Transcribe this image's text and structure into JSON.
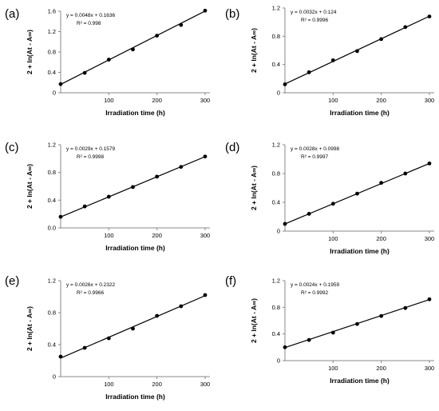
{
  "chart_data": [
    {
      "type": "scatter",
      "panel_label": "(a)",
      "xlabel": "Irradiation time (h)",
      "ylabel": "2 + ln(At - A∞)",
      "xlim": [
        0,
        310
      ],
      "ylim": [
        0,
        1.6
      ],
      "x_ticks": [
        100,
        200,
        300
      ],
      "y_ticks": [
        0,
        0.4,
        0.8,
        1.2,
        1.6
      ],
      "y_tick_labels": [
        "0",
        "0.4",
        "0.8",
        "1.2",
        "1.6"
      ],
      "x": [
        0,
        50,
        100,
        150,
        200,
        250,
        300
      ],
      "y": [
        0.17,
        0.39,
        0.65,
        0.85,
        1.12,
        1.33,
        1.61
      ],
      "trendline": {
        "slope": 0.0048,
        "intercept": 0.1636
      },
      "equation": "y = 0.0048x + 0.1636",
      "r2": "R² = 0.998",
      "grid": false
    },
    {
      "type": "scatter",
      "panel_label": "(b)",
      "xlabel": "Irradiation time (h)",
      "ylabel": "2 + ln(At - A∞)",
      "xlim": [
        0,
        310
      ],
      "ylim": [
        0,
        1.2
      ],
      "x_ticks": [
        100,
        200,
        300
      ],
      "y_ticks": [
        0,
        0.4,
        0.8,
        1.2
      ],
      "y_tick_labels": [
        "0",
        "0.4",
        "0.8",
        "1.2"
      ],
      "x": [
        0,
        50,
        100,
        150,
        200,
        250,
        300
      ],
      "y": [
        0.12,
        0.29,
        0.46,
        0.59,
        0.76,
        0.93,
        1.08
      ],
      "trendline": {
        "slope": 0.0032,
        "intercept": 0.124
      },
      "equation": "y = 0.0032x + 0.124",
      "r2": "R² = 0.9996",
      "grid": false
    },
    {
      "type": "scatter",
      "panel_label": "(c)",
      "xlabel": "Irradiation time (h)",
      "ylabel": "2 + ln(At - A∞)",
      "xlim": [
        0,
        310
      ],
      "ylim": [
        0,
        1.2
      ],
      "x_ticks": [
        100,
        200,
        300
      ],
      "y_ticks": [
        0,
        0.4,
        0.8,
        1.2
      ],
      "y_tick_labels": [
        "0.0",
        "0.4",
        "0.8",
        "1.2"
      ],
      "x": [
        0,
        50,
        100,
        150,
        200,
        250,
        300
      ],
      "y": [
        0.16,
        0.31,
        0.45,
        0.59,
        0.74,
        0.88,
        1.03
      ],
      "trendline": {
        "slope": 0.0029,
        "intercept": 0.1579
      },
      "equation": "y = 0.0029x + 0.1579",
      "r2": "R² = 0.9998",
      "grid": false
    },
    {
      "type": "scatter",
      "panel_label": "(d)",
      "xlabel": "Irradiation time (h)",
      "ylabel": "2 + ln(At - A∞)",
      "xlim": [
        0,
        310
      ],
      "ylim": [
        0,
        1.2
      ],
      "x_ticks": [
        100,
        200,
        300
      ],
      "y_ticks": [
        0,
        0.4,
        0.8,
        1.2
      ],
      "y_tick_labels": [
        "0",
        "0.4",
        "0.8",
        "1.2"
      ],
      "x": [
        0,
        50,
        100,
        150,
        200,
        250,
        300
      ],
      "y": [
        0.1,
        0.24,
        0.38,
        0.52,
        0.67,
        0.8,
        0.94
      ],
      "trendline": {
        "slope": 0.0028,
        "intercept": 0.0998
      },
      "equation": "y = 0.0028x + 0.0998",
      "r2": "R² = 0.9997",
      "grid": false
    },
    {
      "type": "scatter",
      "panel_label": "(e)",
      "xlabel": "Irradiation time (h)",
      "ylabel": "2 + ln(At - A∞)",
      "xlim": [
        0,
        310
      ],
      "ylim": [
        0,
        1.2
      ],
      "x_ticks": [
        100,
        200,
        300
      ],
      "y_ticks": [
        0,
        0.4,
        0.8,
        1.2
      ],
      "y_tick_labels": [
        "0",
        "0.4",
        "0.8",
        "1.2"
      ],
      "x": [
        0,
        50,
        100,
        150,
        200,
        250,
        300
      ],
      "y": [
        0.25,
        0.36,
        0.48,
        0.6,
        0.76,
        0.88,
        1.02
      ],
      "trendline": {
        "slope": 0.0026,
        "intercept": 0.2322
      },
      "equation": "y = 0.0026x + 0.2322",
      "r2": "R² = 0.9966",
      "grid": false
    },
    {
      "type": "scatter",
      "panel_label": "(f)",
      "xlabel": "Irradiation time (h)",
      "ylabel": "2 + ln(At - A∞)",
      "xlim": [
        0,
        310
      ],
      "ylim": [
        0,
        1.2
      ],
      "x_ticks": [
        100,
        200,
        300
      ],
      "y_ticks": [
        0,
        0.4,
        0.8,
        1.2
      ],
      "y_tick_labels": [
        "0",
        "0.4",
        "0.8",
        "1.2"
      ],
      "x": [
        0,
        50,
        100,
        150,
        200,
        250,
        300
      ],
      "y": [
        0.2,
        0.31,
        0.42,
        0.55,
        0.67,
        0.79,
        0.92
      ],
      "trendline": {
        "slope": 0.0024,
        "intercept": 0.1959
      },
      "equation": "y = 0.0024x + 0.1959",
      "r2": "R² = 0.9992",
      "grid": false
    }
  ]
}
